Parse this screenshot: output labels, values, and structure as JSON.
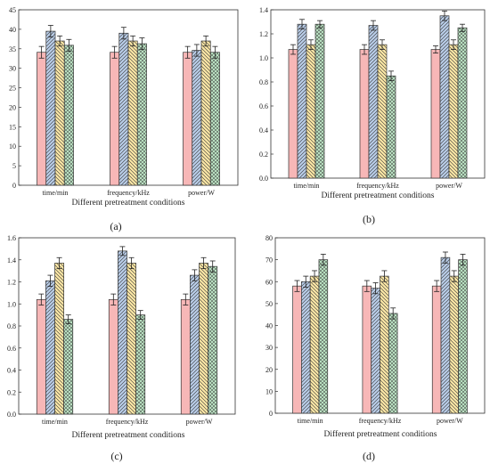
{
  "chart_data": [
    {
      "type": "bar",
      "panel_label": "(a)",
      "xlabel": "Different  pretreatment conditions",
      "ylabel": "",
      "categories": [
        "time/min",
        "frequency/kHz",
        "power/W"
      ],
      "ylim": [
        0,
        45
      ],
      "yticks": [
        0,
        5,
        10,
        15,
        20,
        25,
        30,
        35,
        40,
        45
      ],
      "ytick_labels": [
        "0",
        "5",
        "10",
        "15",
        "20",
        "25",
        "30",
        "35",
        "40",
        "45"
      ],
      "series": [
        {
          "values": [
            34.1,
            34.1,
            34.1
          ],
          "errors": [
            1.5,
            1.5,
            1.5
          ],
          "color": "#f7b7b7",
          "hatch": "none"
        },
        {
          "values": [
            39.5,
            39.0,
            34.6
          ],
          "errors": [
            1.5,
            1.5,
            1.5
          ],
          "color": "#b9cde8",
          "hatch": "diag-right"
        },
        {
          "values": [
            37.0,
            37.0,
            37.0
          ],
          "errors": [
            1.3,
            1.3,
            1.3
          ],
          "color": "#fbe7a6",
          "hatch": "diag-left"
        },
        {
          "values": [
            35.9,
            36.3,
            34.1
          ],
          "errors": [
            1.5,
            1.5,
            1.5
          ],
          "color": "#b8dfc0",
          "hatch": "cross"
        }
      ]
    },
    {
      "type": "bar",
      "panel_label": "(b)",
      "xlabel": "Different  pretreatment conditions",
      "ylabel": "",
      "categories": [
        "time/min",
        "frequency/kHz",
        "power/W"
      ],
      "ylim": [
        0,
        1.4
      ],
      "yticks": [
        0,
        0.2,
        0.4,
        0.6,
        0.8,
        1.0,
        1.2,
        1.4
      ],
      "ytick_labels": [
        "0.0",
        "0.2",
        "0.4",
        "0.6",
        "0.8",
        "1.0",
        "1.2",
        "1.4"
      ],
      "series": [
        {
          "values": [
            1.07,
            1.07,
            1.07
          ],
          "errors": [
            0.04,
            0.04,
            0.03
          ],
          "color": "#f7b7b7",
          "hatch": "none"
        },
        {
          "values": [
            1.28,
            1.27,
            1.35
          ],
          "errors": [
            0.04,
            0.04,
            0.04
          ],
          "color": "#b9cde8",
          "hatch": "diag-right"
        },
        {
          "values": [
            1.11,
            1.11,
            1.11
          ],
          "errors": [
            0.04,
            0.04,
            0.04
          ],
          "color": "#fbe7a6",
          "hatch": "diag-left"
        },
        {
          "values": [
            1.28,
            0.85,
            1.25
          ],
          "errors": [
            0.03,
            0.04,
            0.03
          ],
          "color": "#b8dfc0",
          "hatch": "cross"
        }
      ]
    },
    {
      "type": "bar",
      "panel_label": "(c)",
      "xlabel": "Different  pretreatment conditions",
      "ylabel": "",
      "categories": [
        "time/min",
        "frequency/kHz",
        "power/W"
      ],
      "ylim": [
        0,
        1.6
      ],
      "yticks": [
        0,
        0.2,
        0.4,
        0.6,
        0.8,
        1.0,
        1.2,
        1.4,
        1.6
      ],
      "ytick_labels": [
        "0.0",
        "0.2",
        "0.4",
        "0.6",
        "0.8",
        "1.0",
        "1.2",
        "1.4",
        "1.6"
      ],
      "series": [
        {
          "values": [
            1.04,
            1.04,
            1.04
          ],
          "errors": [
            0.05,
            0.05,
            0.05
          ],
          "color": "#f7b7b7",
          "hatch": "none"
        },
        {
          "values": [
            1.21,
            1.48,
            1.26
          ],
          "errors": [
            0.05,
            0.04,
            0.05
          ],
          "color": "#b9cde8",
          "hatch": "diag-right"
        },
        {
          "values": [
            1.37,
            1.37,
            1.37
          ],
          "errors": [
            0.05,
            0.05,
            0.05
          ],
          "color": "#fbe7a6",
          "hatch": "diag-left"
        },
        {
          "values": [
            0.86,
            0.9,
            1.34
          ],
          "errors": [
            0.04,
            0.04,
            0.05
          ],
          "color": "#b8dfc0",
          "hatch": "cross"
        }
      ]
    },
    {
      "type": "bar",
      "panel_label": "(d)",
      "xlabel": "Different  pretreatment conditions",
      "ylabel": "",
      "categories": [
        "time/min",
        "frequency/kHz",
        "power/W"
      ],
      "ylim": [
        0,
        80
      ],
      "yticks": [
        0,
        10,
        20,
        30,
        40,
        50,
        60,
        70,
        80
      ],
      "ytick_labels": [
        "0",
        "10",
        "20",
        "30",
        "40",
        "50",
        "60",
        "70",
        "80"
      ],
      "series": [
        {
          "values": [
            58.0,
            58.0,
            58.0
          ],
          "errors": [
            2.5,
            2.5,
            2.5
          ],
          "color": "#f7b7b7",
          "hatch": "none"
        },
        {
          "values": [
            60.0,
            57.0,
            71.0
          ],
          "errors": [
            2.5,
            2.5,
            2.5
          ],
          "color": "#b9cde8",
          "hatch": "diag-right"
        },
        {
          "values": [
            62.5,
            62.5,
            62.5
          ],
          "errors": [
            2.5,
            2.5,
            2.5
          ],
          "color": "#fbe7a6",
          "hatch": "diag-left"
        },
        {
          "values": [
            70.0,
            45.5,
            70.0
          ],
          "errors": [
            2.5,
            2.5,
            2.5
          ],
          "color": "#b8dfc0",
          "hatch": "cross"
        }
      ]
    }
  ]
}
